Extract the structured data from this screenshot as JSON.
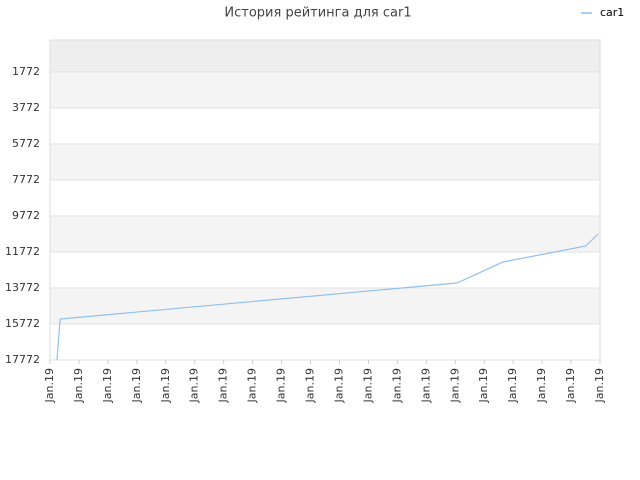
{
  "chart_data": {
    "type": "line",
    "title": "История рейтинга для car1",
    "x": [
      0.24,
      0.35,
      14.06,
      15.65,
      18.51,
      18.93
    ],
    "series": [
      {
        "name": "car1",
        "color": "#90c0ec",
        "values": [
          17772,
          15494,
          13494,
          12328,
          11439,
          10772
        ]
      }
    ],
    "xlim": [
      0,
      19
    ],
    "xticks": [
      {
        "value": 0,
        "label": "Jan.19"
      },
      {
        "value": 1,
        "label": "Jan.19"
      },
      {
        "value": 2,
        "label": "Jan.19"
      },
      {
        "value": 3,
        "label": "Jan.19"
      },
      {
        "value": 4,
        "label": "Jan.19"
      },
      {
        "value": 5,
        "label": "Jan.19"
      },
      {
        "value": 6,
        "label": "Jan.19"
      },
      {
        "value": 7,
        "label": "Jan.19"
      },
      {
        "value": 8,
        "label": "Jan.19"
      },
      {
        "value": 9,
        "label": "Jan.19"
      },
      {
        "value": 10,
        "label": "Jan.19"
      },
      {
        "value": 11,
        "label": "Jan.19"
      },
      {
        "value": 12,
        "label": "Jan.19"
      },
      {
        "value": 13,
        "label": "Jan.19"
      },
      {
        "value": 14,
        "label": "Jan.19"
      },
      {
        "value": 15,
        "label": "Jan.19"
      },
      {
        "value": 16,
        "label": "Jan.19"
      },
      {
        "value": 17,
        "label": "Jan.19"
      },
      {
        "value": 18,
        "label": "Jan.19"
      },
      {
        "value": 19,
        "label": "Jan.19"
      }
    ],
    "ylim": [
      17772,
      -6
    ],
    "yticks": [
      1772,
      3772,
      5772,
      7772,
      9772,
      11772,
      13772,
      15772,
      17772
    ],
    "grid": true,
    "legend": "top-right"
  }
}
